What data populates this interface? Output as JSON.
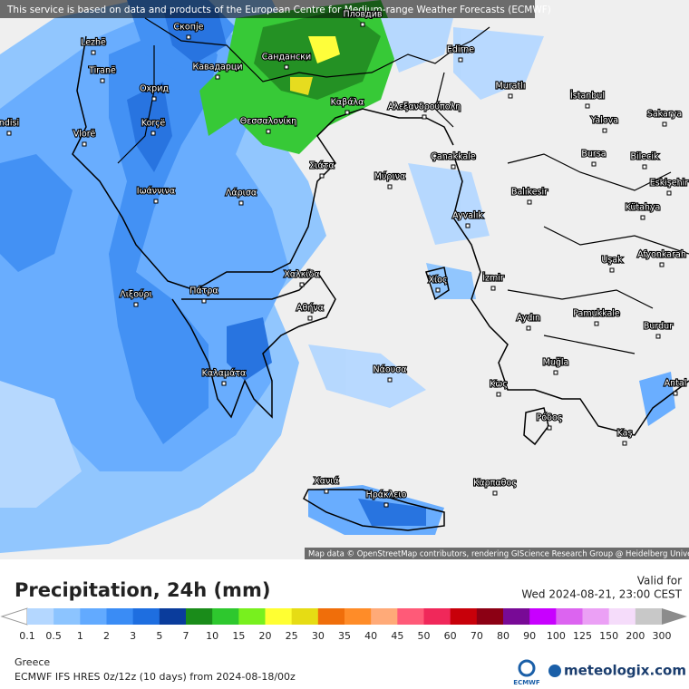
{
  "header": {
    "notice": "This service is based on data and products of the European Centre for Medium-range Weather Forecasts (ECMWF)"
  },
  "map": {
    "attribution": "Map data © OpenStreetMap contributors, rendering GIScience Research Group @ Heidelberg University",
    "cities": [
      "Lezhë",
      "Скопје",
      "Пловдив",
      "Tiranë",
      "Кавадарци",
      "Сандански",
      "Edirne",
      "Охрид",
      "Muratlı",
      "İstanbul",
      "Korçë",
      "Καβάλα",
      "Αλεξανδρούπολη",
      "Yalova",
      "Sakarya",
      "Vlorë",
      "Θεσσαλονίκη",
      "ndisi",
      "Çanakkale",
      "Bursa",
      "Bilecik",
      "Σιάτα",
      "Μύρινα",
      "Ιωάννινα",
      "Λάρισα",
      "Balıkesir",
      "Eskişehir",
      "Kütahya",
      "Ayvalık",
      "Uşak",
      "Afyonkarah",
      "Χαλκίδα",
      "Λιξούρι",
      "Πάτρα",
      "Χίος",
      "İzmir",
      "Αθήνα",
      "Aydın",
      "Pamukkale",
      "Burdur",
      "Νάουσα",
      "Muğla",
      "Καλαμάτα",
      "Κως",
      "Antal",
      "Ρόδος",
      "Kaş",
      "Χανιά",
      "Καρπαθος",
      "Ηράκλειο"
    ]
  },
  "legend": {
    "title": "Precipitation, 24h (mm)",
    "valid_label": "Valid for",
    "valid_time": "Wed 2024-08-21, 23:00 CEST",
    "labels": [
      0.1,
      0.5,
      1,
      2,
      3,
      5,
      7,
      10,
      15,
      20,
      25,
      30,
      35,
      40,
      45,
      50,
      60,
      70,
      80,
      90,
      100,
      125,
      150,
      200,
      300
    ],
    "colors": [
      "#b4d7ff",
      "#8cc4ff",
      "#62aaff",
      "#3a8cf5",
      "#1e6ee0",
      "#0a3c9c",
      "#1a8c1a",
      "#2ec82e",
      "#78f01e",
      "#ffff32",
      "#e6dc14",
      "#f06e0a",
      "#ff8c28",
      "#ffaa78",
      "#ff5a78",
      "#f0285a",
      "#c8000a",
      "#8c0014",
      "#780a96",
      "#c800ff",
      "#dc64f0",
      "#eba0f5",
      "#f5dcfa",
      "#c8c8c8"
    ],
    "under_color": "#ffffff",
    "over_color": "#8c8c8c"
  },
  "footer": {
    "region": "Greece",
    "model": "ECMWF IFS HRES 0z/12z (10 days) from  2024-08-18/00z",
    "ecmwf": "ECMWF",
    "brand": "meteologix.com"
  }
}
